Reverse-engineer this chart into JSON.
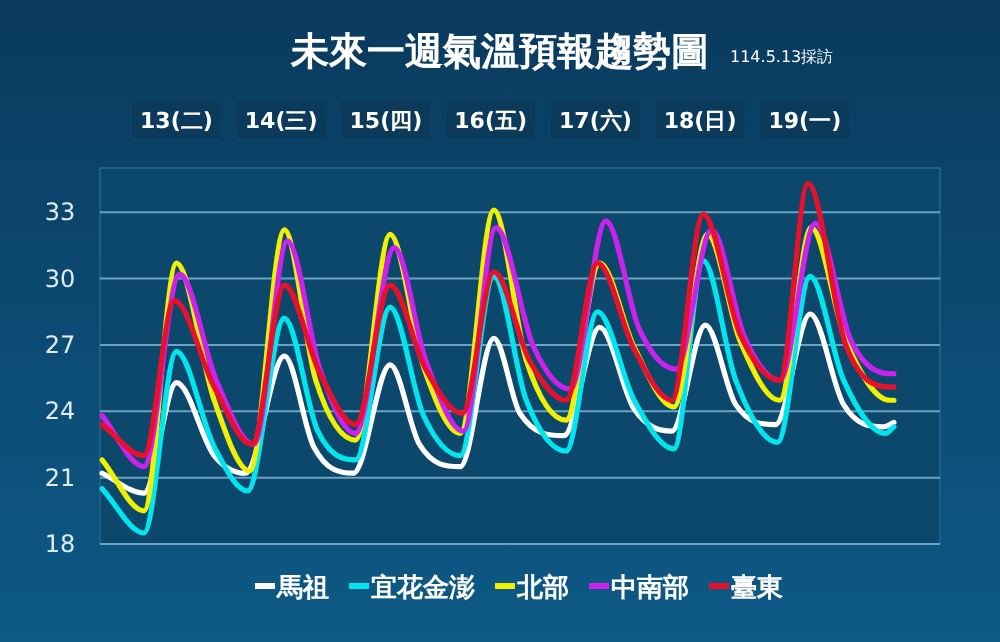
{
  "chart_data": {
    "type": "line",
    "title": "未來一週氣溫預報趨勢圖",
    "subtitle": "114.5.13採訪",
    "xlim": [
      12.77,
      20.79
    ],
    "ylim": [
      18,
      35
    ],
    "xticks": [
      {
        "value": 13.5,
        "label": "13(二)"
      },
      {
        "value": 14.5,
        "label": "14(三)"
      },
      {
        "value": 15.5,
        "label": "15(四)"
      },
      {
        "value": 16.5,
        "label": "16(五)"
      },
      {
        "value": 17.5,
        "label": "17(六)"
      },
      {
        "value": 18.5,
        "label": "18(日)"
      },
      {
        "value": 19.5,
        "label": "19(一)"
      }
    ],
    "yticks": [
      18,
      21,
      24,
      27,
      30,
      33
    ],
    "grid": "y",
    "legend": "bottom",
    "line_style": "solid",
    "series": [
      {
        "name": "馬祖",
        "color": "#ffffff",
        "x": [
          12.79,
          13.19,
          13.5,
          13.86,
          14.16,
          14.53,
          14.81,
          15.19,
          15.54,
          15.82,
          16.21,
          16.53,
          16.78,
          17.2,
          17.54,
          17.87,
          18.23,
          18.55,
          18.84,
          19.22,
          19.55,
          19.87,
          20.25,
          20.35
        ],
        "values": [
          21.2,
          20.3,
          25.3,
          22.0,
          21.2,
          26.5,
          22.4,
          21.2,
          26.1,
          22.5,
          21.5,
          27.3,
          23.9,
          22.9,
          27.8,
          24.1,
          23.1,
          27.9,
          24.3,
          23.4,
          28.4,
          24.3,
          23.3,
          23.5
        ]
      },
      {
        "name": "宜花金澎",
        "color": "#00e5ee",
        "x": [
          12.79,
          13.19,
          13.5,
          13.86,
          14.18,
          14.53,
          14.85,
          15.21,
          15.54,
          15.86,
          16.21,
          16.53,
          16.84,
          17.22,
          17.52,
          17.87,
          18.25,
          18.53,
          18.84,
          19.24,
          19.55,
          19.87,
          20.27,
          20.35
        ],
        "values": [
          20.5,
          18.5,
          26.7,
          22.4,
          20.4,
          28.2,
          23.1,
          21.8,
          28.7,
          23.8,
          22.0,
          30.1,
          24.5,
          22.2,
          28.5,
          24.5,
          22.3,
          30.8,
          25.4,
          22.6,
          30.1,
          25.4,
          23.0,
          23.3
        ]
      },
      {
        "name": "北部",
        "color": "#f0f000",
        "x": [
          12.79,
          13.19,
          13.5,
          13.86,
          14.2,
          14.53,
          14.83,
          15.21,
          15.54,
          15.86,
          16.21,
          16.53,
          16.84,
          17.22,
          17.54,
          17.87,
          18.25,
          18.57,
          18.88,
          19.26,
          19.56,
          19.89,
          20.31,
          20.35
        ],
        "values": [
          21.8,
          19.5,
          30.7,
          24.5,
          21.3,
          32.2,
          25.4,
          22.7,
          32.0,
          26.0,
          23.0,
          33.1,
          26.3,
          23.6,
          30.7,
          26.9,
          24.2,
          32.0,
          27.2,
          24.5,
          32.3,
          27.2,
          24.5,
          24.5
        ]
      },
      {
        "name": "中南部",
        "color": "#cc22ee",
        "x": [
          12.79,
          13.19,
          13.53,
          13.88,
          14.24,
          14.56,
          14.87,
          15.21,
          15.58,
          15.88,
          16.24,
          16.55,
          16.91,
          17.26,
          17.6,
          17.92,
          18.27,
          18.61,
          18.92,
          19.26,
          19.6,
          19.94,
          20.31,
          20.35
        ],
        "values": [
          23.8,
          21.5,
          30.2,
          25.4,
          22.5,
          31.7,
          25.9,
          23.0,
          31.4,
          26.3,
          23.1,
          32.3,
          26.9,
          25.0,
          32.6,
          27.7,
          25.9,
          32.2,
          27.4,
          25.4,
          32.5,
          27.2,
          25.7,
          25.7
        ]
      },
      {
        "name": "臺東",
        "color": "#e8112d",
        "x": [
          12.79,
          13.19,
          13.48,
          13.86,
          14.22,
          14.53,
          14.87,
          15.21,
          15.54,
          15.88,
          16.23,
          16.53,
          16.87,
          17.22,
          17.52,
          17.87,
          18.23,
          18.53,
          18.88,
          19.26,
          19.53,
          19.89,
          20.31,
          20.35
        ],
        "values": [
          23.4,
          22.0,
          29.0,
          25.1,
          22.5,
          29.7,
          25.7,
          23.4,
          29.7,
          25.9,
          23.9,
          30.3,
          26.3,
          24.5,
          30.7,
          26.8,
          24.5,
          32.9,
          27.5,
          25.4,
          34.3,
          27.0,
          25.1,
          25.1
        ]
      }
    ]
  }
}
